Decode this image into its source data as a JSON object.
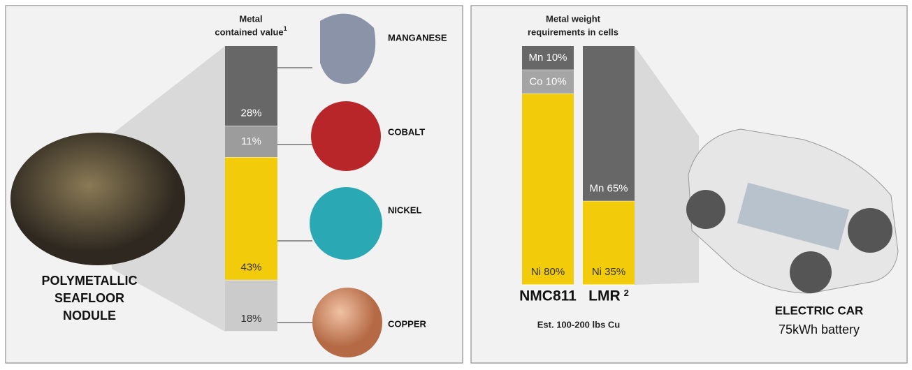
{
  "chart_data": [
    {
      "type": "stacked_bar",
      "title": [
        "Metal",
        "contained value"
      ],
      "title_note": "1",
      "categories": [
        null
      ],
      "series": [
        {
          "name": "MANGANESE",
          "color": "#676767",
          "values": [
            28
          ],
          "value_labels": [
            "28%"
          ]
        },
        {
          "name": "COBALT",
          "color": "#9c9c9c",
          "values": [
            11
          ],
          "value_labels": [
            "11%"
          ]
        },
        {
          "name": "NICKEL",
          "color": "#f2cb0a",
          "values": [
            43
          ],
          "value_labels": [
            "43%"
          ]
        },
        {
          "name": "COPPER",
          "color": "#cbcbcb",
          "values": [
            18
          ],
          "value_labels": [
            "18%"
          ]
        }
      ],
      "annotations": [
        "POLYMETALLIC",
        "SEAFLOOR",
        "NODULE"
      ]
    },
    {
      "type": "stacked_bar",
      "title": [
        "Metal weight",
        "requirements in cells"
      ],
      "categories": [
        "NMC811",
        "LMR"
      ],
      "category_notes": [
        null,
        "2"
      ],
      "series": [
        {
          "color": "#676767",
          "values": [
            10,
            65
          ],
          "value_labels": [
            "Mn 10%",
            "Mn 65%"
          ]
        },
        {
          "color": "#a5a5a5",
          "values": [
            10,
            null
          ],
          "value_labels": [
            "Co 10%",
            null
          ]
        },
        {
          "color": "#f2cb0a",
          "values": [
            80,
            35
          ],
          "value_labels": [
            "Ni 80%",
            "Ni 35%"
          ]
        }
      ],
      "note": "Est. 100-200 lbs Cu",
      "annotations": [
        "ELECTRIC CAR",
        "75kWh battery"
      ]
    }
  ]
}
